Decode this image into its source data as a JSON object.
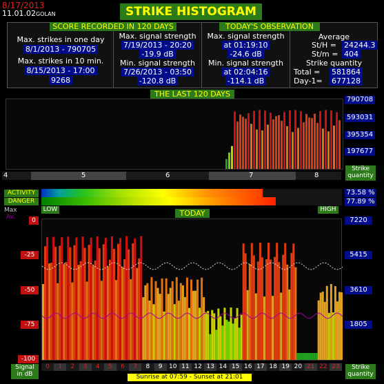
{
  "header": {
    "date": "8/17/2013",
    "time": "11.01.02",
    "station": "GOLAN",
    "title": "STRIKE HISTOGRAM"
  },
  "score": {
    "title": "SCORE RECORDED IN 120 DAYS",
    "max_strikes_day_label": "Max. strikes in one day",
    "max_strikes_day_value": "8/1/2013 - 790705",
    "max_strikes_10min_label": "Max. strikes in 10 min.",
    "max_strikes_10min_date": "8/15/2013 - 17:00",
    "max_strikes_10min_value": "9268",
    "max_signal_label": "Max. signal strength",
    "max_signal_date": "7/19/2013 - 20:20",
    "max_signal_value": "-19.9 dB",
    "min_signal_label": "Min. signal strength",
    "min_signal_date": "7/26/2013 - 03:50",
    "min_signal_value": "-120.8 dB"
  },
  "today": {
    "title": "TODAY'S OBSERVATION",
    "max_signal_label": "Max. signal strength",
    "max_signal_time": "at 01:19:10",
    "max_signal_value": "-24.6 dB",
    "min_signal_label": "Min. signal strength",
    "min_signal_time": "at 02:04:16",
    "min_signal_value": "-114.1 dB",
    "average_label": "Average",
    "sth_label": "St/H =",
    "sth_value": "24244.3",
    "stm_label": "St/m =",
    "stm_value": "404",
    "quantity_label": "Strike quantity",
    "total_label": "Total =",
    "total_value": "581864",
    "day1_label": "Day-1=",
    "day1_value": "677128"
  },
  "last120": {
    "title": "THE LAST 120 DAYS",
    "y_ticks": [
      "790708",
      "593031",
      "395354",
      "197677"
    ],
    "x_months": [
      "4",
      "5",
      "6",
      "7",
      "8"
    ],
    "quantity_label_1": "Strike",
    "quantity_label_2": "quantity"
  },
  "meters": {
    "activity_label": "ACTIVITY",
    "activity_value": "73.58 %",
    "activity_fraction": 0.7358,
    "danger_label": "DANGER",
    "danger_value": "77.89 %",
    "danger_fraction": 0.7789,
    "low_label": "LOW",
    "high_label": "HIGH"
  },
  "today_chart": {
    "title": "TODAY",
    "max_label": "Max",
    "av_label": "Av.",
    "left_ticks": [
      "0",
      "-25",
      "-50",
      "-75",
      "-100"
    ],
    "right_ticks": [
      "7220",
      "5415",
      "3610",
      "1805"
    ],
    "hours": [
      "0",
      "1",
      "2",
      "3",
      "4",
      "5",
      "6",
      "7",
      "8",
      "9",
      "10",
      "11",
      "12",
      "13",
      "14",
      "15",
      "16",
      "17",
      "18",
      "19",
      "20",
      "21",
      "22",
      "23"
    ],
    "signal_label_1": "Signal",
    "signal_label_2": "in dB",
    "quantity_label_1": "Strike",
    "quantity_label_2": "quantity",
    "sunrise": "Sunrise at 07:59  -  Sunset at 21:01"
  },
  "colors": {
    "accent_green": "#2d7a1a",
    "title_yellow": "#ffff00",
    "navy": "#000c8a",
    "red": "#c01010"
  }
}
